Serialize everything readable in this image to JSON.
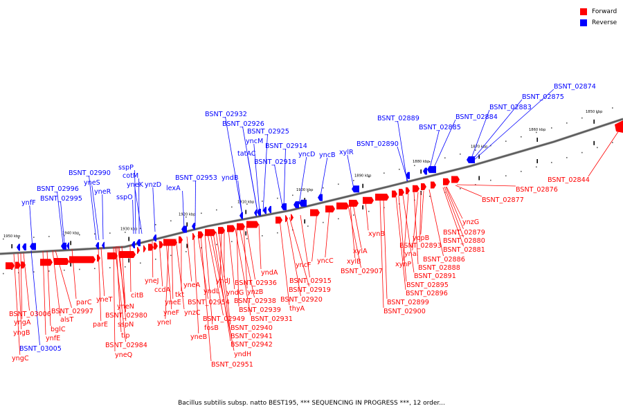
{
  "legend": {
    "forward_label": "Forward",
    "reverse_label": "Reverse",
    "forward_color": "#ff0000",
    "reverse_color": "#0000ff"
  },
  "caption": "Bacillus subtilis subsp. natto BEST195, *** SEQUENCING IN PROGRESS ***, 12 order...",
  "axis_ticks": [
    {
      "label": "1950 kbp"
    },
    {
      "label": "1940 kbp"
    },
    {
      "label": "1930 kbp"
    },
    {
      "label": "1920 kbp"
    },
    {
      "label": "1910 kbp"
    },
    {
      "label": "1900 kbp"
    },
    {
      "label": "1890 kbp"
    },
    {
      "label": "1880 kbp"
    },
    {
      "label": "1870 kbp"
    },
    {
      "label": "1860 kbp"
    },
    {
      "label": "1850 kbp"
    }
  ],
  "reverse_genes": [
    "BSNT_02874",
    "BSNT_02875",
    "BSNT_02883",
    "BSNT_02884",
    "BSNT_02885",
    "BSNT_02889",
    "BSNT_02890",
    "xylR",
    "yncB",
    "yncD",
    "BSNT_02914",
    "BSNT_02918",
    "tatAC",
    "yncM",
    "BSNT_02925",
    "BSNT_02926",
    "BSNT_02932",
    "yndB",
    "BSNT_02953",
    "lexA",
    "ynzD",
    "yneK",
    "cotM",
    "sspP",
    "sspO",
    "yneR",
    "yneS",
    "BSNT_02990",
    "BSNT_02996",
    "BSNT_02995",
    "ynfF",
    "BSNT_03005"
  ],
  "forward_genes": [
    "BSNT_02844",
    "BSNT_02876",
    "BSNT_02877",
    "ynzG",
    "BSNT_02879",
    "BSNT_02880",
    "BSNT_02881",
    "yopB",
    "BSNT_02893",
    "ynaI",
    "BSNT_02886",
    "xynP",
    "BSNT_02888",
    "BSNT_02891",
    "BSNT_02895",
    "BSNT_02896",
    "BSNT_02899",
    "BSNT_02900",
    "xynB",
    "xylA",
    "xylB",
    "BSNT_02907",
    "yncC",
    "yncF",
    "BSNT_02915",
    "BSNT_02919",
    "BSNT_02920",
    "thyA",
    "yndA",
    "BSNT_02936",
    "ynzB",
    "BSNT_02938",
    "BSNT_02939",
    "BSNT_02931",
    "yndG",
    "yndJ",
    "yndL",
    "BSNT_02940",
    "BSNT_02941",
    "BSNT_02942",
    "yndH",
    "BSNT_02951",
    "BSNT_02949",
    "fosB",
    "BSNT_02954",
    "yneA",
    "tkt",
    "yneE",
    "yneF",
    "ccdA",
    "yneJ",
    "yneI",
    "ynzC",
    "yneB",
    "citB",
    "BSNT_02980",
    "sspN",
    "yneN",
    "tlp",
    "BSNT_02984",
    "yneQ",
    "yneT",
    "parE",
    "parC",
    "BSNT_02997",
    "alsT",
    "bglC",
    "ynfE",
    "BSNT_03006",
    "yngA",
    "yngB",
    "yngC"
  ]
}
